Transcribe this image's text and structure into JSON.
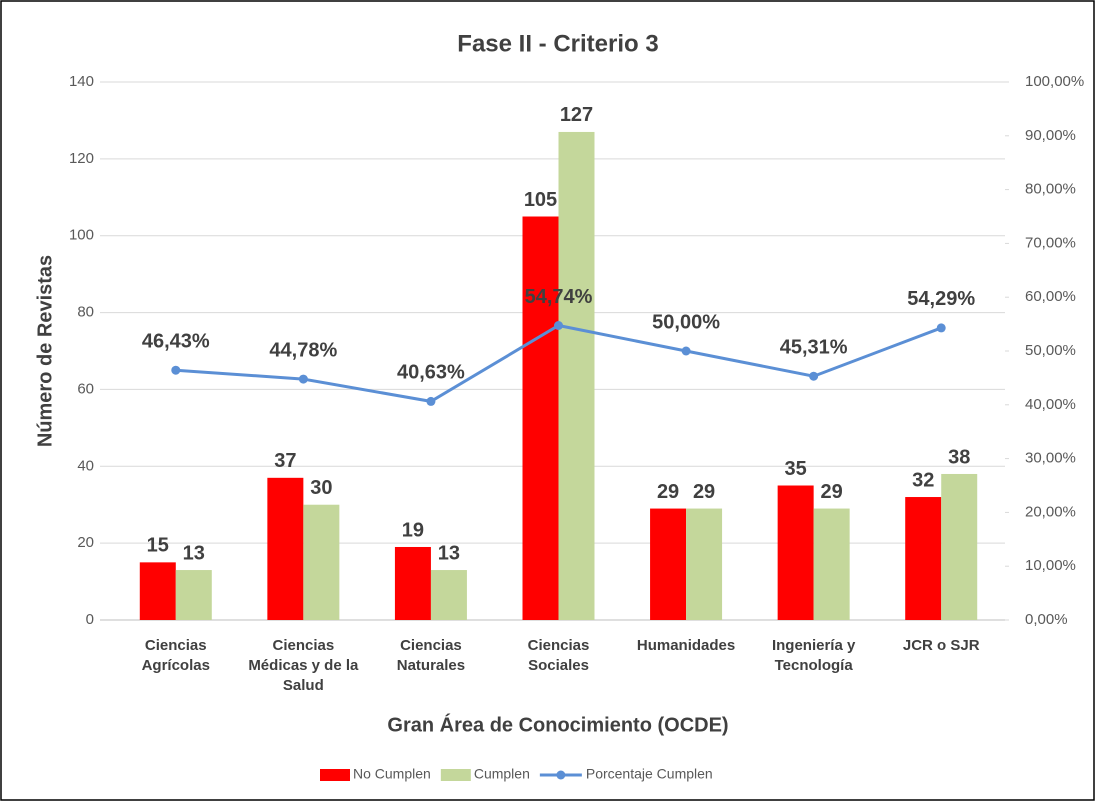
{
  "chart_data": {
    "type": "bar",
    "title": "Fase II - Criterio 3",
    "x_label": "Gran Área de Conocimiento (OCDE)",
    "y_label": "Número de Revistas",
    "categories": [
      "Ciencias Agrícolas",
      "Ciencias Médicas y de la Salud",
      "Ciencias Naturales",
      "Ciencias Sociales",
      "Humanidades",
      "Ingeniería y Tecnología",
      "JCR o SJR"
    ],
    "series": [
      {
        "name": "No Cumplen",
        "color": "#ff0000",
        "type": "bar",
        "values": [
          15,
          37,
          19,
          105,
          29,
          35,
          32
        ]
      },
      {
        "name": "Cumplen",
        "color": "#c4d79b",
        "type": "bar",
        "values": [
          13,
          30,
          13,
          127,
          29,
          29,
          38
        ]
      },
      {
        "name": "Porcentaje Cumplen",
        "color": "#5b8fd5",
        "type": "line",
        "axis": "y2",
        "values": [
          46.43,
          44.78,
          40.63,
          54.74,
          50.0,
          45.31,
          54.29
        ],
        "value_labels": [
          "46,43%",
          "44,78%",
          "40,63%",
          "54,74%",
          "50,00%",
          "45,31%",
          "54,29%"
        ]
      }
    ],
    "ylim": [
      0,
      140
    ],
    "yticks": [
      0,
      20,
      40,
      60,
      80,
      100,
      120,
      140
    ],
    "y2lim": [
      0,
      100
    ],
    "y2ticks": [
      {
        "value": 0,
        "label": "0,00%"
      },
      {
        "value": 10,
        "label": "10,00%"
      },
      {
        "value": 20,
        "label": "20,00%"
      },
      {
        "value": 30,
        "label": "30,00%"
      },
      {
        "value": 40,
        "label": "40,00%"
      },
      {
        "value": 50,
        "label": "50,00%"
      },
      {
        "value": 60,
        "label": "60,00%"
      },
      {
        "value": 70,
        "label": "70,00%"
      },
      {
        "value": 80,
        "label": "80,00%"
      },
      {
        "value": 90,
        "label": "90,00%"
      },
      {
        "value": 100,
        "label": "100,00%"
      }
    ],
    "grid": true,
    "legend": "bottom"
  }
}
